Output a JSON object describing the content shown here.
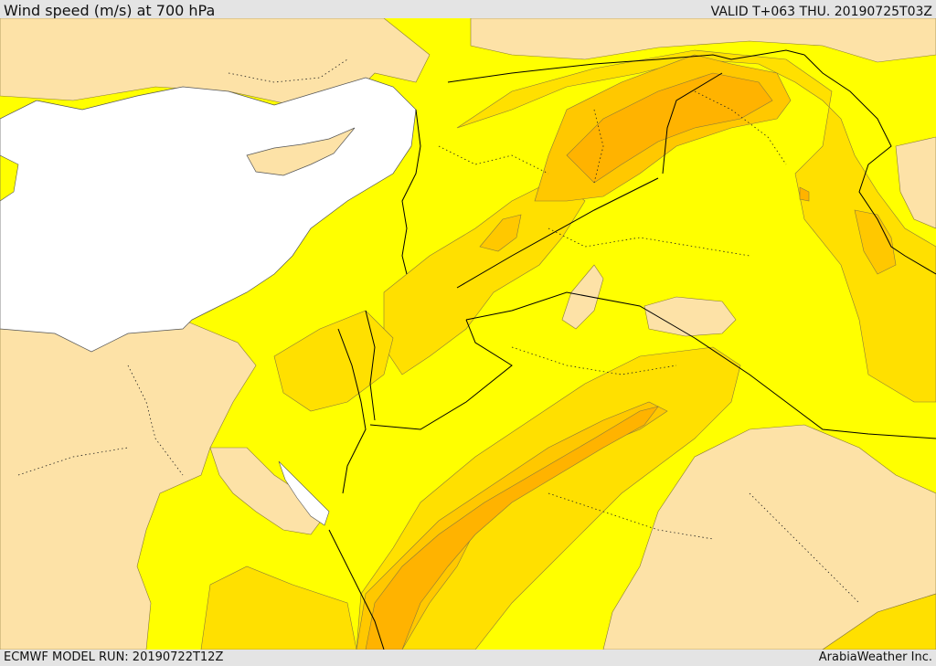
{
  "header": {
    "title": "Wind speed (m/s) at 700 hPa",
    "valid_time": "VALID T+063 THU. 20190725T03Z"
  },
  "footer": {
    "model_run": "ECMWF MODEL RUN: 20190722T12Z",
    "credit": "ArabiaWeather Inc."
  },
  "map": {
    "colors": {
      "sea": "#ffffff",
      "calm_band": "#fde2a7",
      "band_1": "#ffff00",
      "band_2": "#ffe000",
      "band_3": "#ffc800",
      "band_4": "#ffb300",
      "border_line": "#000000",
      "contour_line": "#6b6b00"
    }
  }
}
